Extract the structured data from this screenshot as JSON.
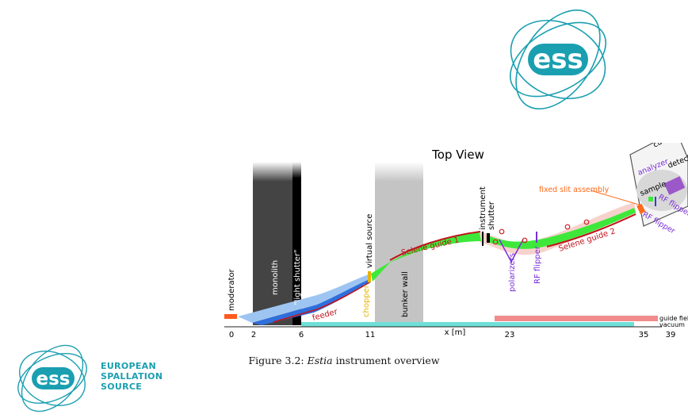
{
  "figure": {
    "title": "Top View",
    "labels": {
      "moderator": "moderator",
      "monolith": "monolith",
      "light_shutter": "\"light shutter\"",
      "feeder": "feeder",
      "virtual_source": "virtual source",
      "chopper": "chopper",
      "bunker_wall": "bunker wall",
      "selene_guide_1": "Selene guide 1",
      "instrument_shutter_line1": "instrument",
      "instrument_shutter_line2": "shutter",
      "polarizers": "polarizers",
      "rf_flipper_1": "RF flipper",
      "selene_guide_2": "Selene guide 2",
      "fixed_slit_assembly": "fixed slit assembly",
      "sample": "sample",
      "analyzer": "analyzer",
      "detector": "detector",
      "cave": "cave",
      "rf_flipper_2": "RF flipper",
      "rf_flipper_3": "RF flipper",
      "guide_field": "guide field",
      "vacuum": "vacuum",
      "x_axis": "x [m]"
    },
    "axis_ticks": [
      "0",
      "2",
      "6",
      "11",
      "23",
      "35",
      "39"
    ],
    "colors": {
      "monolith": "#444444",
      "light_shutter": "#000000",
      "bunker": "#c4c4c4",
      "feeder": "#2f6fdc",
      "feeder_light": "#9ec5f2",
      "guide_green": "#3ee83a",
      "beam_pink": "#f7d2cc",
      "guide_red": "#c0141e",
      "chopper": "#e6b400",
      "purple": "#7a2fd6",
      "orange_label": "#ff6a1a",
      "vacuum_bar": "#6fe0d8",
      "guide_field_bar": "#f28c8c",
      "moderator": "#ff5a1f",
      "ess_cyan": "#1a9fb0"
    }
  },
  "caption": {
    "prefix": "Figure 3.2: ",
    "italic": "Estia",
    "suffix": " instrument overview"
  },
  "branding": {
    "logo_text": "ess",
    "org_line1": "EUROPEAN",
    "org_line2": "SPALLATION",
    "org_line3": "SOURCE"
  }
}
